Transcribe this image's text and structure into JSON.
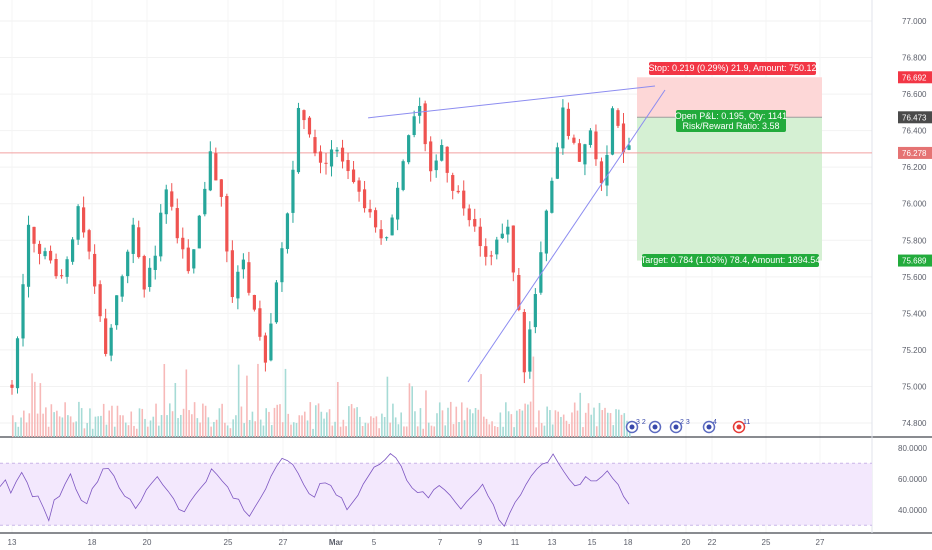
{
  "chart_data": {
    "type": "candlestick",
    "main_panel": {
      "y_range": [
        74.7,
        77.1
      ],
      "price_axis_ticks": [
        "74.800",
        "75.000",
        "75.200",
        "75.400",
        "75.600",
        "75.800",
        "76.000",
        "76.200",
        "76.400",
        "76.600",
        "76.800",
        "77.000"
      ],
      "x_tick_labels": [
        "13",
        "18",
        "20",
        "25",
        "27",
        "Mar",
        "5",
        "7",
        "9",
        "11",
        "13",
        "15",
        "18",
        "20",
        "22",
        "25",
        "27"
      ],
      "close_path": [
        [
          0,
          75.0
        ],
        [
          3,
          75.85
        ],
        [
          6,
          75.72
        ],
        [
          9,
          75.6
        ],
        [
          12,
          75.95
        ],
        [
          14,
          75.7
        ],
        [
          17,
          75.2
        ],
        [
          20,
          75.6
        ],
        [
          22,
          75.85
        ],
        [
          24,
          75.55
        ],
        [
          26,
          75.75
        ],
        [
          28,
          76.1
        ],
        [
          30,
          75.85
        ],
        [
          32,
          75.6
        ],
        [
          34,
          75.9
        ],
        [
          36,
          76.25
        ],
        [
          38,
          76.05
        ],
        [
          40,
          75.5
        ],
        [
          42,
          75.7
        ],
        [
          44,
          75.4
        ],
        [
          46,
          75.1
        ],
        [
          48,
          75.55
        ],
        [
          50,
          75.95
        ],
        [
          52,
          76.5
        ],
        [
          54,
          76.4
        ],
        [
          56,
          76.2
        ],
        [
          58,
          76.3
        ],
        [
          60,
          76.25
        ],
        [
          62,
          76.15
        ],
        [
          64,
          76.0
        ],
        [
          66,
          75.9
        ],
        [
          68,
          75.8
        ],
        [
          70,
          76.1
        ],
        [
          72,
          76.4
        ],
        [
          74,
          76.5
        ],
        [
          75,
          76.3
        ],
        [
          76,
          76.2
        ],
        [
          78,
          76.3
        ],
        [
          80,
          76.1
        ],
        [
          82,
          76.0
        ],
        [
          84,
          75.9
        ],
        [
          86,
          75.7
        ],
        [
          88,
          75.8
        ],
        [
          90,
          75.85
        ],
        [
          91,
          75.65
        ],
        [
          92,
          75.4
        ],
        [
          93,
          75.1
        ],
        [
          94,
          75.3
        ],
        [
          95,
          75.5
        ],
        [
          96,
          75.7
        ],
        [
          97,
          75.95
        ],
        [
          98,
          76.1
        ],
        [
          99,
          76.3
        ],
        [
          100,
          76.5
        ],
        [
          101,
          76.4
        ],
        [
          102,
          76.3
        ],
        [
          103,
          76.2
        ],
        [
          104,
          76.35
        ],
        [
          105,
          76.4
        ],
        [
          106,
          76.25
        ],
        [
          107,
          76.1
        ],
        [
          108,
          76.3
        ],
        [
          109,
          76.55
        ],
        [
          110,
          76.45
        ],
        [
          111,
          76.3
        ]
      ],
      "rising_wedge": {
        "upper_line": {
          "from": [
            65,
            76.47
          ],
          "to": [
            106,
            76.62
          ]
        },
        "lower_line": {
          "from": [
            92,
            74.95
          ],
          "to": [
            114,
            76.52
          ]
        }
      },
      "stop_loss_line": 76.278,
      "price_labels": [
        {
          "value": "76.692",
          "style": "stop",
          "color": "#f23645"
        },
        {
          "value": "76.473",
          "style": "entry",
          "color": "#4a4a4a"
        },
        {
          "value": "76.278",
          "style": "current",
          "color": "#e57373"
        },
        {
          "value": "75.689",
          "style": "target",
          "color": "#22ab3c"
        }
      ],
      "position_tool": {
        "entry": 76.473,
        "stop": 76.692,
        "target": 75.689,
        "stop_text": "Stop: 0.219 (0.29%) 21.9, Amount: 750.12",
        "pnl_text_line1": "Open P&L: 0.195, Qty: 1141",
        "pnl_text_line2": "Risk/Reward Ratio: 3.58",
        "target_text": "Target: 0.784 (1.03%) 78.4, Amount: 1894.54"
      },
      "event_markers": [
        {
          "badge": "3 2"
        },
        {
          "badge": ""
        },
        {
          "badge": "2 3"
        },
        {
          "badge": "4"
        },
        {
          "badge": "11"
        }
      ]
    },
    "rsi_panel": {
      "y_range": [
        25,
        85
      ],
      "ticks": [
        "40.0000",
        "60.0000",
        "80.0000"
      ],
      "band": [
        30,
        70
      ],
      "values": [
        55,
        58,
        52,
        60,
        63,
        57,
        50,
        47,
        40,
        35,
        45,
        50,
        58,
        62,
        55,
        48,
        45,
        52,
        60,
        66,
        68,
        62,
        55,
        50,
        45,
        40,
        46,
        52,
        58,
        62,
        57,
        52,
        48,
        42,
        38,
        44,
        50,
        55,
        60,
        65,
        62,
        58,
        54,
        48,
        45,
        40,
        35,
        42,
        48,
        55,
        62,
        70,
        75,
        72,
        68,
        62,
        55,
        52,
        50,
        55,
        58,
        54,
        50,
        46,
        42,
        45,
        50,
        56,
        62,
        66,
        70,
        74,
        78,
        74,
        68,
        60,
        55,
        52,
        50,
        48,
        52,
        56,
        54,
        50,
        46,
        42,
        45,
        48,
        52,
        56,
        50,
        42,
        35,
        30,
        38,
        45,
        50,
        55,
        60,
        65,
        70,
        72,
        74,
        70,
        65,
        60,
        55,
        58,
        62,
        60,
        58,
        62,
        65,
        60,
        55,
        50,
        45
      ]
    },
    "colors": {
      "up": "#26a69a",
      "down": "#ef5350",
      "rsi_line": "#7e57c2",
      "rsi_band": "#f3e8fd",
      "wedge_line": "#8c8cf0",
      "stop_zone": "#fdd7d7",
      "target_zone": "#d5f0d3"
    }
  }
}
